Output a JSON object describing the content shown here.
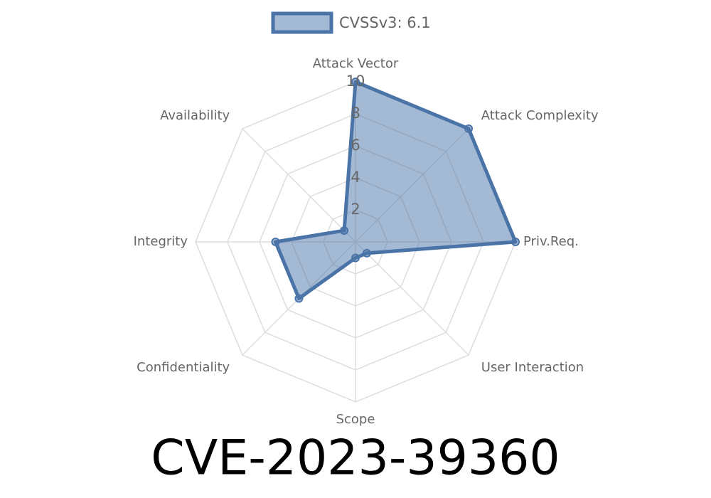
{
  "chart_data": {
    "type": "radar",
    "title": "CVE-2023-39360",
    "categories": [
      "Attack Vector",
      "Attack Complexity",
      "Priv.Req.",
      "User Interaction",
      "Scope",
      "Confidentiality",
      "Integrity",
      "Availability"
    ],
    "series": [
      {
        "name": "CVSSv3: 6.1",
        "color": "#4a74a8",
        "values": [
          10,
          10,
          10,
          1,
          1,
          5,
          5,
          1
        ]
      }
    ],
    "rlim": [
      0,
      10
    ],
    "rticks": [
      2,
      4,
      6,
      8,
      10
    ],
    "grid": true,
    "legend": "top"
  }
}
